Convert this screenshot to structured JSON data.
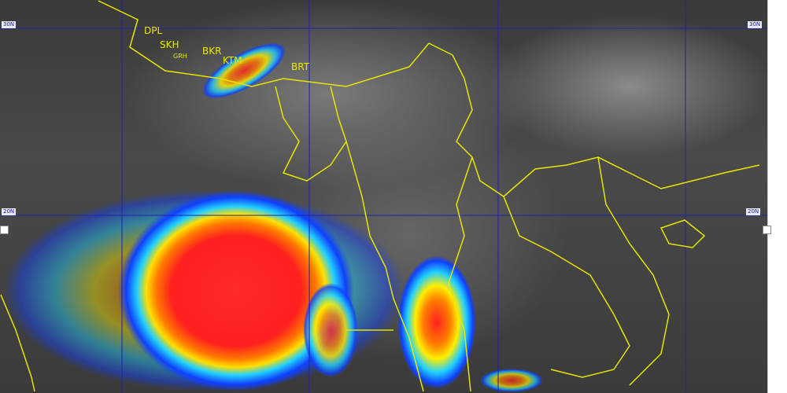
{
  "image": {
    "kind": "satellite infrared weather image",
    "colors": {
      "background": "#3f3f3f",
      "grid": "#2020b0",
      "borders": "#e6e600",
      "core": "#ff2020",
      "rainbow": [
        "#ff2020",
        "#ff8000",
        "#ffff00",
        "#00e0ff",
        "#0040ff"
      ]
    }
  },
  "lat_labels": {
    "north": "30N",
    "north_right": "30N",
    "south": "20N",
    "south_right": "20N"
  },
  "city_labels": [
    "DPL",
    "SKH",
    "GRH",
    "BKR",
    "KTM",
    "BRT"
  ]
}
